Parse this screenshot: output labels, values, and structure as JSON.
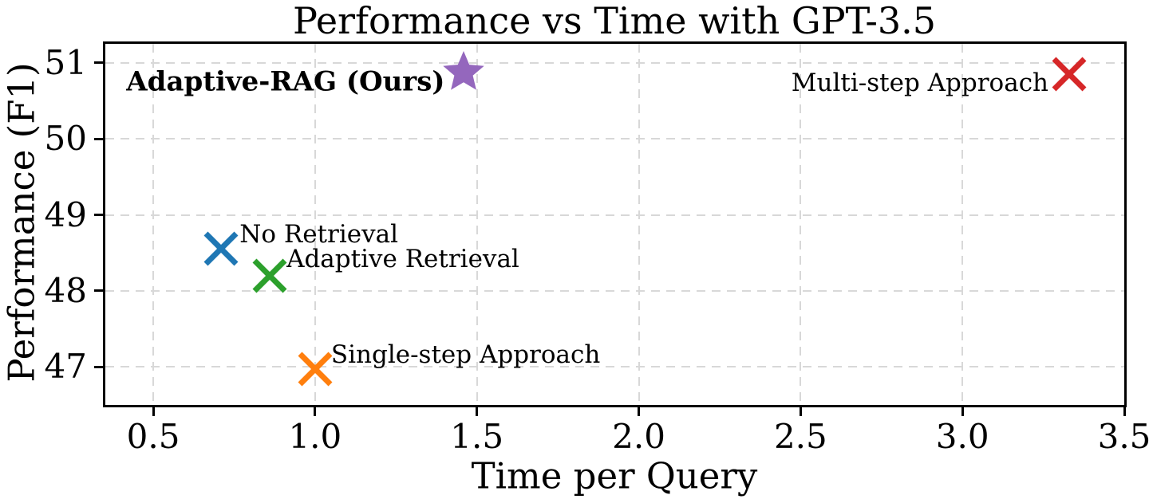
{
  "chart_data": {
    "type": "scatter",
    "title": "Performance vs Time with GPT-3.5",
    "xlabel": "Time per Query",
    "ylabel": "Performance (F1)",
    "xlim": [
      0.352,
      3.5
    ],
    "ylim": [
      46.5,
      51.25
    ],
    "xticks": [
      0.5,
      1.0,
      1.5,
      2.0,
      2.5,
      3.0,
      3.5
    ],
    "xtick_labels": [
      "0.5",
      "1.0",
      "1.5",
      "2.0",
      "2.5",
      "3.0",
      "3.5"
    ],
    "yticks": [
      47,
      48,
      49,
      50,
      51
    ],
    "ytick_labels": [
      "47",
      "48",
      "49",
      "50",
      "51"
    ],
    "grid": true,
    "grid_style": "dashed",
    "grid_color": "#d8d8d8",
    "spine_color": "#000000",
    "legend_position": "none (labels annotated next to points)",
    "points": [
      {
        "label": "Adaptive-RAG (Ours)",
        "x": 1.46,
        "y": 50.87,
        "marker": "star",
        "color": "#9467bd",
        "bold": true,
        "label_side": "left",
        "label_offset": [
          -24,
          12
        ]
      },
      {
        "label": "Multi-step Approach",
        "x": 3.33,
        "y": 50.85,
        "marker": "x",
        "color": "#d62728",
        "bold": false,
        "label_side": "left",
        "label_offset": [
          -26,
          11
        ]
      },
      {
        "label": "No Retrieval",
        "x": 0.71,
        "y": 48.55,
        "marker": "x",
        "color": "#1f77b4",
        "bold": false,
        "label_side": "right",
        "label_offset": [
          23,
          -18
        ]
      },
      {
        "label": "Adaptive Retrieval",
        "x": 0.86,
        "y": 48.2,
        "marker": "x",
        "color": "#2ca02c",
        "bold": false,
        "label_side": "right",
        "label_offset": [
          21,
          -21
        ]
      },
      {
        "label": "Single-step Approach",
        "x": 1.0,
        "y": 46.97,
        "marker": "x",
        "color": "#ff7f0e",
        "bold": false,
        "label_side": "right",
        "label_offset": [
          20,
          -18
        ]
      }
    ]
  }
}
